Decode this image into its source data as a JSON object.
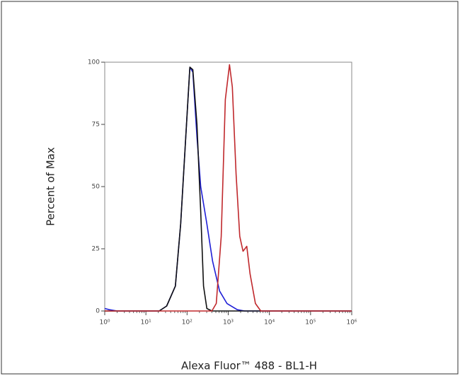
{
  "chart_data": {
    "type": "line",
    "xlabel": "Alexa Fluor™ 488 - BL1-H",
    "ylabel": "Percent of Max",
    "xscale": "log",
    "xlim": [
      1,
      1000000
    ],
    "xticks": [
      {
        "value": 1,
        "label": "10⁰"
      },
      {
        "value": 10,
        "label": "10¹"
      },
      {
        "value": 100,
        "label": "10²"
      },
      {
        "value": 1000,
        "label": "10³"
      },
      {
        "value": 10000,
        "label": "10⁴"
      },
      {
        "value": 100000,
        "label": "10⁵"
      },
      {
        "value": 1000000,
        "label": "10⁶"
      }
    ],
    "ylim": [
      0,
      100
    ],
    "yticks": [
      0,
      25,
      50,
      75,
      100
    ],
    "series": [
      {
        "color": "#1f1fd6",
        "x": [
          1,
          1.3,
          2,
          10,
          21,
          32,
          52,
          70,
          93,
          117,
          138,
          174,
          214,
          302,
          417,
          617,
          933,
          1660,
          2500,
          1000000
        ],
        "values": [
          1,
          0.5,
          0,
          0,
          0,
          2,
          10,
          35,
          70,
          98,
          96,
          70,
          50,
          35,
          20,
          8,
          3,
          0.5,
          0,
          0
        ]
      },
      {
        "color": "#111111",
        "x": [
          1,
          10,
          21,
          32,
          52,
          70,
          93,
          117,
          138,
          174,
          214,
          251,
          302,
          400,
          1000000
        ],
        "values": [
          0,
          0,
          0,
          2,
          10,
          35,
          70,
          98,
          97,
          75,
          40,
          10,
          1,
          0,
          0
        ]
      },
      {
        "color": "#c0282c",
        "x": [
          1,
          100,
          400,
          513,
          676,
          851,
          1072,
          1259,
          1549,
          1905,
          2291,
          2818,
          3388,
          4571,
          6166,
          1000000
        ],
        "values": [
          0,
          0,
          0,
          3,
          30,
          85,
          99,
          90,
          55,
          30,
          24,
          26,
          15,
          3,
          0,
          0
        ]
      }
    ]
  }
}
